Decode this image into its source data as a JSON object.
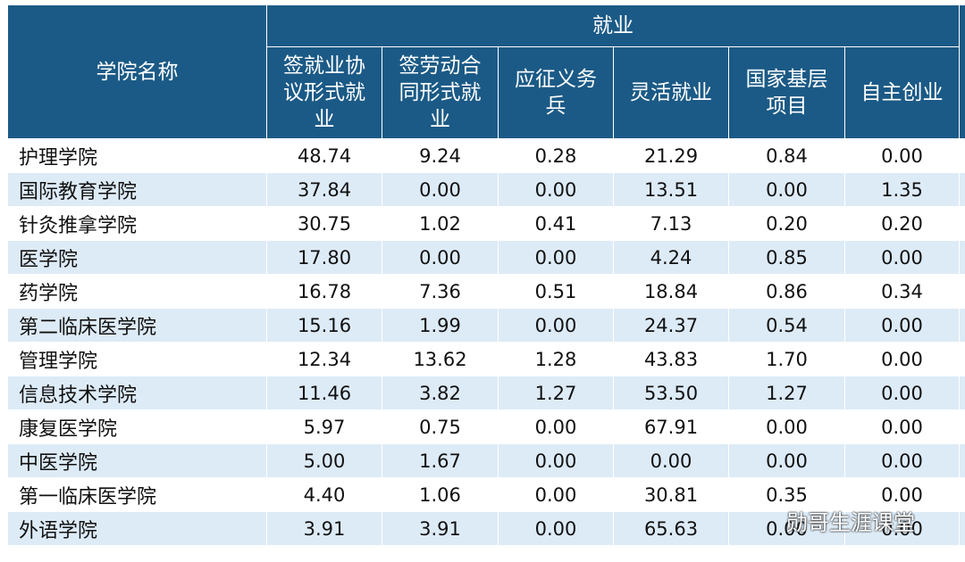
{
  "header": {
    "first": "学院名称",
    "group": "就业",
    "columns": [
      "签就业协议形式就业",
      "签劳动合同形式就业",
      "应征义务兵",
      "灵活就业",
      "国家基层项目",
      "自主创业"
    ]
  },
  "table": {
    "rows": [
      [
        "护理学院",
        "48.74",
        "9.24",
        "0.28",
        "21.29",
        "0.84",
        "0.00"
      ],
      [
        "国际教育学院",
        "37.84",
        "0.00",
        "0.00",
        "13.51",
        "0.00",
        "1.35"
      ],
      [
        "针灸推拿学院",
        "30.75",
        "1.02",
        "0.41",
        "7.13",
        "0.20",
        "0.20"
      ],
      [
        "医学院",
        "17.80",
        "0.00",
        "0.00",
        "4.24",
        "0.85",
        "0.00"
      ],
      [
        "药学院",
        "16.78",
        "7.36",
        "0.51",
        "18.84",
        "0.86",
        "0.34"
      ],
      [
        "第二临床医学院",
        "15.16",
        "1.99",
        "0.00",
        "24.37",
        "0.54",
        "0.00"
      ],
      [
        "管理学院",
        "12.34",
        "13.62",
        "1.28",
        "43.83",
        "1.70",
        "0.00"
      ],
      [
        "信息技术学院",
        "11.46",
        "3.82",
        "1.27",
        "53.50",
        "1.27",
        "0.00"
      ],
      [
        "康复医学院",
        "5.97",
        "0.75",
        "0.00",
        "67.91",
        "0.00",
        "0.00"
      ],
      [
        "中医学院",
        "5.00",
        "1.67",
        "0.00",
        "0.00",
        "0.00",
        "0.00"
      ],
      [
        "第一临床医学院",
        "4.40",
        "1.06",
        "0.00",
        "30.81",
        "0.35",
        "0.00"
      ],
      [
        "外语学院",
        "3.91",
        "3.91",
        "0.00",
        "65.63",
        "0.00",
        "0.00"
      ]
    ]
  },
  "watermark": "勋哥生涯课堂"
}
